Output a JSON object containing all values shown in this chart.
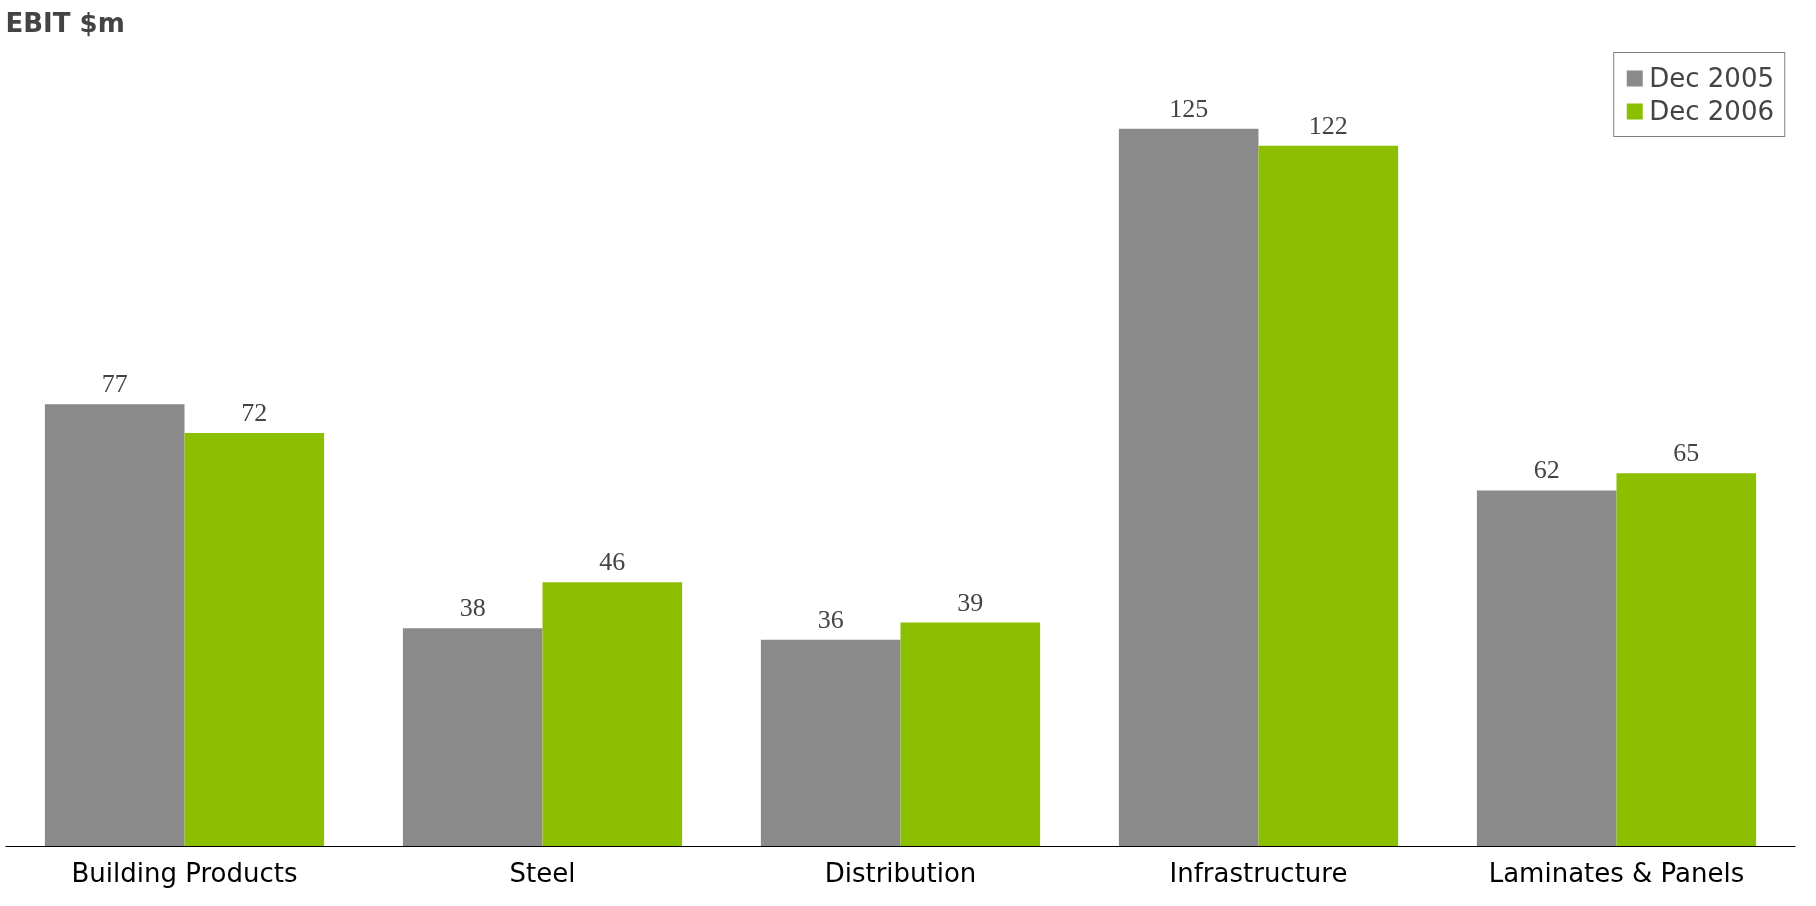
{
  "chart_data": {
    "type": "bar",
    "title": "EBIT $m",
    "categories": [
      "Building Products",
      "Steel",
      "Distribution",
      "Infrastructure",
      "Laminates & Panels"
    ],
    "series": [
      {
        "name": "Dec 2005",
        "color": "#8a8a8a",
        "values": [
          77,
          38,
          36,
          125,
          62
        ]
      },
      {
        "name": "Dec 2006",
        "color": "#8cbf00",
        "values": [
          72,
          46,
          39,
          122,
          65
        ]
      }
    ],
    "data_labels": true,
    "legend": "top right",
    "grid": false
  }
}
